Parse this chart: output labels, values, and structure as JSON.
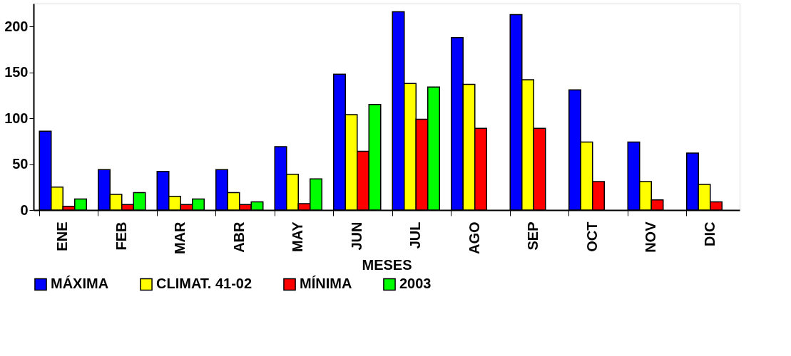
{
  "chart_data": {
    "type": "bar",
    "xlabel": "MESES",
    "categories": [
      "ENE",
      "FEB",
      "MAR",
      "ABR",
      "MAY",
      "JUN",
      "JUL",
      "AGO",
      "SEP",
      "OCT",
      "NOV",
      "DIC"
    ],
    "series": [
      {
        "name": "MÁXIMA",
        "color": "#0000ff",
        "values": [
          86,
          44,
          42,
          44,
          69,
          148,
          216,
          188,
          213,
          131,
          74,
          62
        ]
      },
      {
        "name": "CLIMAT. 41-02",
        "color": "#ffff00",
        "values": [
          25,
          17,
          15,
          19,
          39,
          104,
          138,
          137,
          142,
          74,
          31,
          28
        ]
      },
      {
        "name": "MÍNIMA",
        "color": "#ff0000",
        "values": [
          4,
          6,
          6,
          6,
          7,
          64,
          99,
          89,
          89,
          31,
          11,
          9
        ]
      },
      {
        "name": "2003",
        "color": "#00ff00",
        "values": [
          12,
          19,
          12,
          9,
          34,
          115,
          134,
          null,
          null,
          null,
          null,
          null
        ]
      }
    ],
    "ylim": [
      0,
      225
    ],
    "yticks": [
      0,
      50,
      100,
      150,
      200
    ],
    "grid": false,
    "legend": "bottom"
  }
}
